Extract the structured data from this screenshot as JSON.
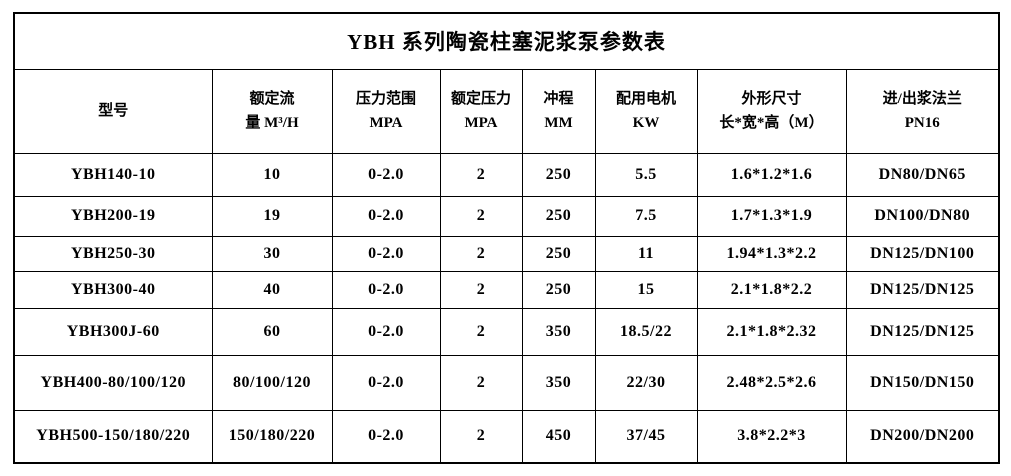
{
  "title": "YBH 系列陶瓷柱塞泥浆泵参数表",
  "colors": {
    "text": "#000000",
    "border": "#000000",
    "background": "#ffffff"
  },
  "table": {
    "columns": [
      {
        "line1": "型号",
        "line2": ""
      },
      {
        "line1": "额定流",
        "line2": "量 M³/H"
      },
      {
        "line1": "压力范围",
        "line2": "MPA"
      },
      {
        "line1": "额定压力",
        "line2": "MPA"
      },
      {
        "line1": "冲程",
        "line2": "MM"
      },
      {
        "line1": "配用电机",
        "line2": "KW"
      },
      {
        "line1": "外形尺寸",
        "line2": "长*宽*高（M）"
      },
      {
        "line1": "进/出浆法兰",
        "line2": "PN16"
      }
    ],
    "rows": [
      [
        "YBH140-10",
        "10",
        "0-2.0",
        "2",
        "250",
        "5.5",
        "1.6*1.2*1.6",
        "DN80/DN65"
      ],
      [
        "YBH200-19",
        "19",
        "0-2.0",
        "2",
        "250",
        "7.5",
        "1.7*1.3*1.9",
        "DN100/DN80"
      ],
      [
        "YBH250-30",
        "30",
        "0-2.0",
        "2",
        "250",
        "11",
        "1.94*1.3*2.2",
        "DN125/DN100"
      ],
      [
        "YBH300-40",
        "40",
        "0-2.0",
        "2",
        "250",
        "15",
        "2.1*1.8*2.2",
        "DN125/DN125"
      ],
      [
        "YBH300J-60",
        "60",
        "0-2.0",
        "2",
        "350",
        "18.5/22",
        "2.1*1.8*2.32",
        "DN125/DN125"
      ],
      [
        "YBH400-80/100/120",
        "80/100/120",
        "0-2.0",
        "2",
        "350",
        "22/30",
        "2.48*2.5*2.6",
        "DN150/DN150"
      ],
      [
        "YBH500-150/180/220",
        "150/180/220",
        "0-2.0",
        "2",
        "450",
        "37/45",
        "3.8*2.2*3",
        "DN200/DN200"
      ]
    ]
  }
}
